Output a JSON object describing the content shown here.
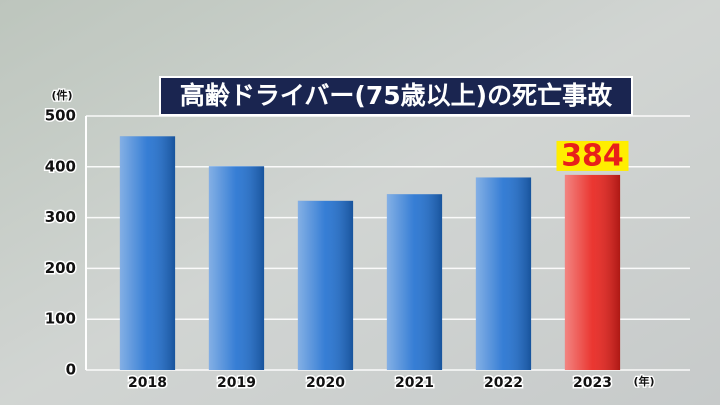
{
  "chart_data": {
    "type": "bar",
    "title": "高齢ドライバー(75歳以上)の死亡事故",
    "y_unit": "(件)",
    "x_unit": "(年)",
    "categories": [
      "2018",
      "2019",
      "2020",
      "2021",
      "2022",
      "2023"
    ],
    "values": [
      460,
      401,
      333,
      346,
      379,
      384
    ],
    "colors": [
      "#1f6fd0",
      "#1f6fd0",
      "#1f6fd0",
      "#1f6fd0",
      "#1f6fd0",
      "#e8201a"
    ],
    "value_label_indices": [
      5
    ],
    "ylim": [
      0,
      500
    ],
    "yticks": [
      0,
      100,
      200,
      300,
      400,
      500
    ],
    "grid": true
  }
}
